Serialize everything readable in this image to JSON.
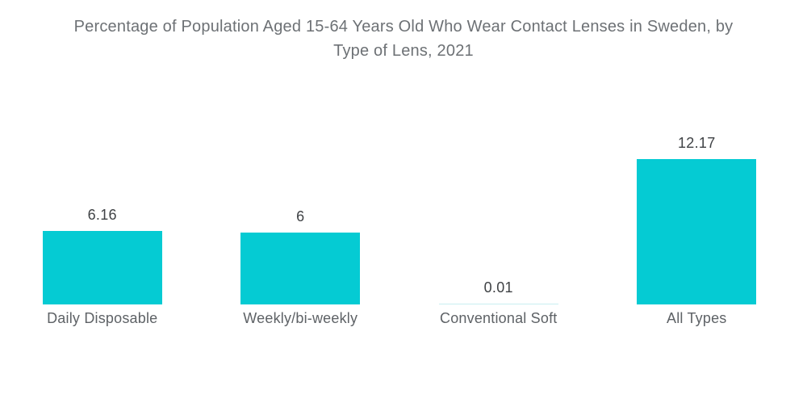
{
  "title_lines": [
    "Percentage of Population Aged 15-64 Years Old Who Wear Contact Lenses in Sweden, by",
    "Type of Lens, 2021"
  ],
  "chart_data": {
    "type": "bar",
    "title": "Percentage of Population Aged 15-64 Years Old Who Wear Contact Lenses in Sweden, by Type of Lens, 2021",
    "categories": [
      "Daily Disposable",
      "Weekly/bi-weekly",
      "Conventional Soft",
      "All Types"
    ],
    "values": [
      6.16,
      6,
      0.01,
      12.17
    ],
    "value_labels": [
      "6.16",
      "6",
      "0.01",
      "12.17"
    ],
    "xlabel": "",
    "ylabel": "",
    "ylim": [
      0,
      12.17
    ],
    "grid": false,
    "legend": "none",
    "bar_color": "#05cbd3",
    "bar_color_faint": "#c9eef1",
    "title_color": "#6d7175",
    "value_label_color": "#3f4245",
    "category_label_color": "#5e6266",
    "background_color": "#ffffff"
  }
}
